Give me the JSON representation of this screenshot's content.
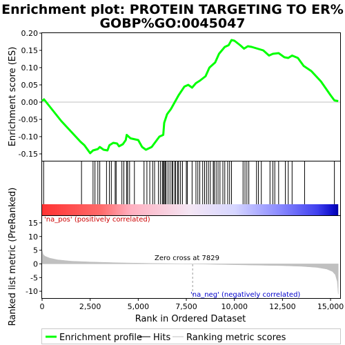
{
  "chart_data": {
    "type": "line",
    "title": [
      "Enrichment plot: PROTEIN TARGETING TO ER%",
      "GOBP%GO:0045047"
    ],
    "xlabel": "Rank in Ordered Dataset",
    "xlim": [
      0,
      15500
    ],
    "x_ticks": [
      0,
      2500,
      5000,
      7500,
      10000,
      12500,
      15000
    ],
    "x_tick_labels": [
      "0",
      "2,500",
      "5,000",
      "7,500",
      "10,000",
      "12,500",
      "15,000"
    ],
    "es_panel": {
      "ylabel": "Enrichment score (ES)",
      "ylim": [
        -0.17,
        0.2
      ],
      "y_ticks": [
        -0.15,
        -0.1,
        -0.05,
        0.0,
        0.05,
        0.1,
        0.15,
        0.2
      ],
      "y_tick_labels": [
        "-0.15",
        "-0.10",
        "-0.05",
        "0.00",
        "0.05",
        "0.10",
        "0.15",
        "0.20"
      ],
      "series_name": "Enrichment profile",
      "color": "#00ff00",
      "points": [
        [
          0,
          0.003
        ],
        [
          100,
          0.008
        ],
        [
          500,
          -0.02
        ],
        [
          1000,
          -0.055
        ],
        [
          1500,
          -0.085
        ],
        [
          2000,
          -0.115
        ],
        [
          2200,
          -0.125
        ],
        [
          2500,
          -0.148
        ],
        [
          2650,
          -0.14
        ],
        [
          2900,
          -0.136
        ],
        [
          3000,
          -0.13
        ],
        [
          3200,
          -0.138
        ],
        [
          3400,
          -0.14
        ],
        [
          3500,
          -0.125
        ],
        [
          3700,
          -0.118
        ],
        [
          3900,
          -0.12
        ],
        [
          4000,
          -0.128
        ],
        [
          4200,
          -0.122
        ],
        [
          4350,
          -0.11
        ],
        [
          4400,
          -0.095
        ],
        [
          4600,
          -0.105
        ],
        [
          5000,
          -0.11
        ],
        [
          5200,
          -0.13
        ],
        [
          5400,
          -0.138
        ],
        [
          5700,
          -0.13
        ],
        [
          5900,
          -0.115
        ],
        [
          6100,
          -0.1
        ],
        [
          6300,
          -0.095
        ],
        [
          6350,
          -0.06
        ],
        [
          6500,
          -0.035
        ],
        [
          6700,
          -0.02
        ],
        [
          6900,
          0.0
        ],
        [
          7100,
          0.02
        ],
        [
          7400,
          0.045
        ],
        [
          7600,
          0.05
        ],
        [
          7800,
          0.042
        ],
        [
          8000,
          0.055
        ],
        [
          8200,
          0.062
        ],
        [
          8500,
          0.075
        ],
        [
          8700,
          0.1
        ],
        [
          9000,
          0.115
        ],
        [
          9200,
          0.14
        ],
        [
          9500,
          0.16
        ],
        [
          9700,
          0.165
        ],
        [
          9850,
          0.18
        ],
        [
          10000,
          0.178
        ],
        [
          10300,
          0.165
        ],
        [
          10500,
          0.155
        ],
        [
          10700,
          0.162
        ],
        [
          10900,
          0.16
        ],
        [
          11200,
          0.155
        ],
        [
          11500,
          0.15
        ],
        [
          11800,
          0.135
        ],
        [
          12000,
          0.14
        ],
        [
          12300,
          0.142
        ],
        [
          12600,
          0.13
        ],
        [
          12800,
          0.128
        ],
        [
          13000,
          0.135
        ],
        [
          13300,
          0.128
        ],
        [
          13600,
          0.105
        ],
        [
          14000,
          0.09
        ],
        [
          14500,
          0.06
        ],
        [
          15000,
          0.02
        ],
        [
          15200,
          0.005
        ],
        [
          15400,
          0.003
        ]
      ]
    },
    "hits": {
      "series_name": "Hits",
      "color": "#000000",
      "positions": [
        80,
        2050,
        2650,
        2750,
        2900,
        3000,
        3350,
        3500,
        3600,
        3800,
        3850,
        4150,
        4250,
        4400,
        4450,
        4550,
        4800,
        5300,
        5450,
        5600,
        5750,
        5850,
        6050,
        6150,
        6250,
        6300,
        6350,
        6400,
        6450,
        6550,
        6650,
        6750,
        6800,
        6900,
        6950,
        7050,
        7100,
        7200,
        7300,
        7500,
        7550,
        7800,
        8000,
        8100,
        8200,
        8350,
        8450,
        8550,
        8650,
        8750,
        8900,
        8950,
        9050,
        9150,
        9250,
        9400,
        9500,
        9650,
        9750,
        9850,
        10450,
        10550,
        10650,
        10750,
        11150,
        11250,
        11400,
        11850,
        12000,
        12100,
        12300,
        12650,
        12800,
        13000,
        13650,
        15200
      ]
    },
    "ranking_panel": {
      "ylabel": "Ranked list metric (PreRanked)",
      "ylim": [
        -12.5,
        17.5
      ],
      "y_ticks": [
        -10,
        -5,
        0,
        5,
        10,
        15
      ],
      "y_tick_labels": [
        "-10",
        "-5",
        "0",
        "5",
        "10",
        "15"
      ],
      "series_name": "Ranking metric scores",
      "color": "#c0c0c0",
      "points": [
        [
          0,
          5.0
        ],
        [
          50,
          3.5
        ],
        [
          150,
          2.8
        ],
        [
          400,
          2.1
        ],
        [
          800,
          1.5
        ],
        [
          1500,
          1.0
        ],
        [
          2500,
          0.7
        ],
        [
          4000,
          0.4
        ],
        [
          6000,
          0.15
        ],
        [
          7829,
          0.0
        ],
        [
          9500,
          -0.25
        ],
        [
          11000,
          -0.45
        ],
        [
          12500,
          -0.65
        ],
        [
          13500,
          -0.9
        ],
        [
          14300,
          -1.3
        ],
        [
          14800,
          -1.9
        ],
        [
          15100,
          -2.8
        ],
        [
          15250,
          -4.0
        ],
        [
          15350,
          -6.5
        ],
        [
          15400,
          -11.0
        ]
      ],
      "zero_cross_label": "Zero cross at 7829",
      "zero_cross": 7829,
      "pos_label": "'na_pos' (positively correlated)",
      "neg_label": "'na_neg' (negatively correlated)",
      "pos_label_color": "#cc0000",
      "neg_label_color": "#0000cc"
    },
    "legend": {
      "placement": "bottom",
      "entries": [
        {
          "label": "Enrichment profile",
          "color": "#00ff00"
        },
        {
          "label": "Hits",
          "color": "#000000"
        },
        {
          "label": "Ranking metric scores",
          "color": "#c0c0c0"
        }
      ]
    }
  }
}
